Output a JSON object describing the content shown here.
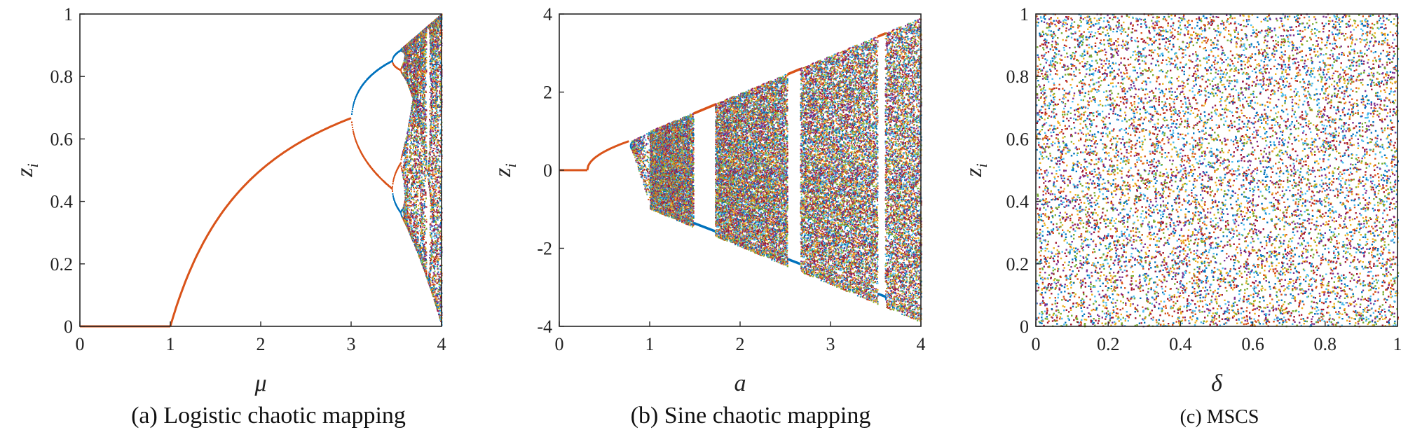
{
  "colors": {
    "orange": "#d95319",
    "blue": "#0072bd",
    "palette": [
      "#d95319",
      "#0072bd",
      "#edb120",
      "#7e2f8e",
      "#77ac30",
      "#4dbeee",
      "#a2142f"
    ]
  },
  "chart_data": [
    {
      "type": "scatter",
      "subtype": "bifurcation",
      "caption": "(a) Logistic chaotic mapping",
      "xlabel": "μ",
      "ylabel": "z",
      "ylabel_subscript": "i",
      "xlim": [
        0,
        4
      ],
      "ylim": [
        0,
        1
      ],
      "xticks": [
        0,
        1,
        2,
        3,
        4
      ],
      "yticks": [
        0,
        0.2,
        0.4,
        0.6,
        0.8,
        1
      ],
      "xtick_labels": [
        "0",
        "1",
        "2",
        "3",
        "4"
      ],
      "ytick_labels": [
        "0",
        "0.2",
        "0.4",
        "0.6",
        "0.8",
        "1"
      ],
      "map": "logistic",
      "series": [
        {
          "segment": "fixed point",
          "x_range": [
            0,
            3
          ],
          "y_at_x": [
            [
              0,
              0
            ],
            [
              1,
              0
            ],
            [
              2,
              0.5
            ],
            [
              3,
              0.667
            ]
          ],
          "color": "orange"
        },
        {
          "segment": "period-2 branches",
          "x_range": [
            3,
            3.449
          ],
          "upper_y_at_end": 0.849,
          "lower_y_at_end": 0.44,
          "colors": [
            "blue",
            "orange"
          ]
        },
        {
          "segment": "chaotic band",
          "x_range": [
            3.57,
            4
          ],
          "y_range": [
            0,
            1
          ]
        }
      ],
      "grid": false
    },
    {
      "type": "scatter",
      "subtype": "bifurcation",
      "caption": "(b) Sine chaotic mapping",
      "xlabel": "a",
      "ylabel": "z",
      "ylabel_subscript": "i",
      "xlim": [
        0,
        4
      ],
      "ylim": [
        -4,
        4
      ],
      "xticks": [
        0,
        1,
        2,
        3,
        4
      ],
      "yticks": [
        -4,
        -2,
        0,
        2,
        4
      ],
      "xtick_labels": [
        "0",
        "1",
        "2",
        "3",
        "4"
      ],
      "ytick_labels": [
        "-4",
        "-2",
        "0",
        "2",
        "4"
      ],
      "map": "sine",
      "series": [
        {
          "segment": "fixed point",
          "x_range": [
            0,
            0.31
          ],
          "y": 0,
          "color": "orange"
        },
        {
          "segment": "growing branch",
          "x_range": [
            0.31,
            0.78
          ],
          "y_at_end": 0.75,
          "color": "orange"
        },
        {
          "segment": "chaotic wedge",
          "x_range": [
            1.0,
            4.0
          ],
          "y_upper": [
            [
              1.0,
              1.0
            ],
            [
              4.0,
              3.9
            ]
          ],
          "y_lower": [
            [
              1.0,
              -1.0
            ],
            [
              4.0,
              -3.9
            ]
          ]
        },
        {
          "segment": "periodic windows",
          "x_windows": [
            [
              1.48,
              1.72
            ],
            [
              2.52,
              2.66
            ],
            [
              3.52,
              3.6
            ]
          ]
        }
      ],
      "grid": false
    },
    {
      "type": "scatter",
      "subtype": "uniform-distribution",
      "caption": "(c) MSCS",
      "xlabel": "δ",
      "ylabel": "z",
      "ylabel_subscript": "i",
      "xlim": [
        0,
        1
      ],
      "ylim": [
        0,
        1
      ],
      "xticks": [
        0,
        0.2,
        0.4,
        0.6,
        0.8,
        1
      ],
      "yticks": [
        0,
        0.2,
        0.4,
        0.6,
        0.8,
        1
      ],
      "xtick_labels": [
        "0",
        "0.2",
        "0.4",
        "0.6",
        "0.8",
        "1"
      ],
      "ytick_labels": [
        "0",
        "0.2",
        "0.4",
        "0.6",
        "0.8",
        "1"
      ],
      "map": "mscs",
      "series": [
        {
          "segment": "full coverage",
          "x_range": [
            0,
            1
          ],
          "y_range": [
            0,
            1
          ]
        }
      ],
      "grid": false
    }
  ]
}
